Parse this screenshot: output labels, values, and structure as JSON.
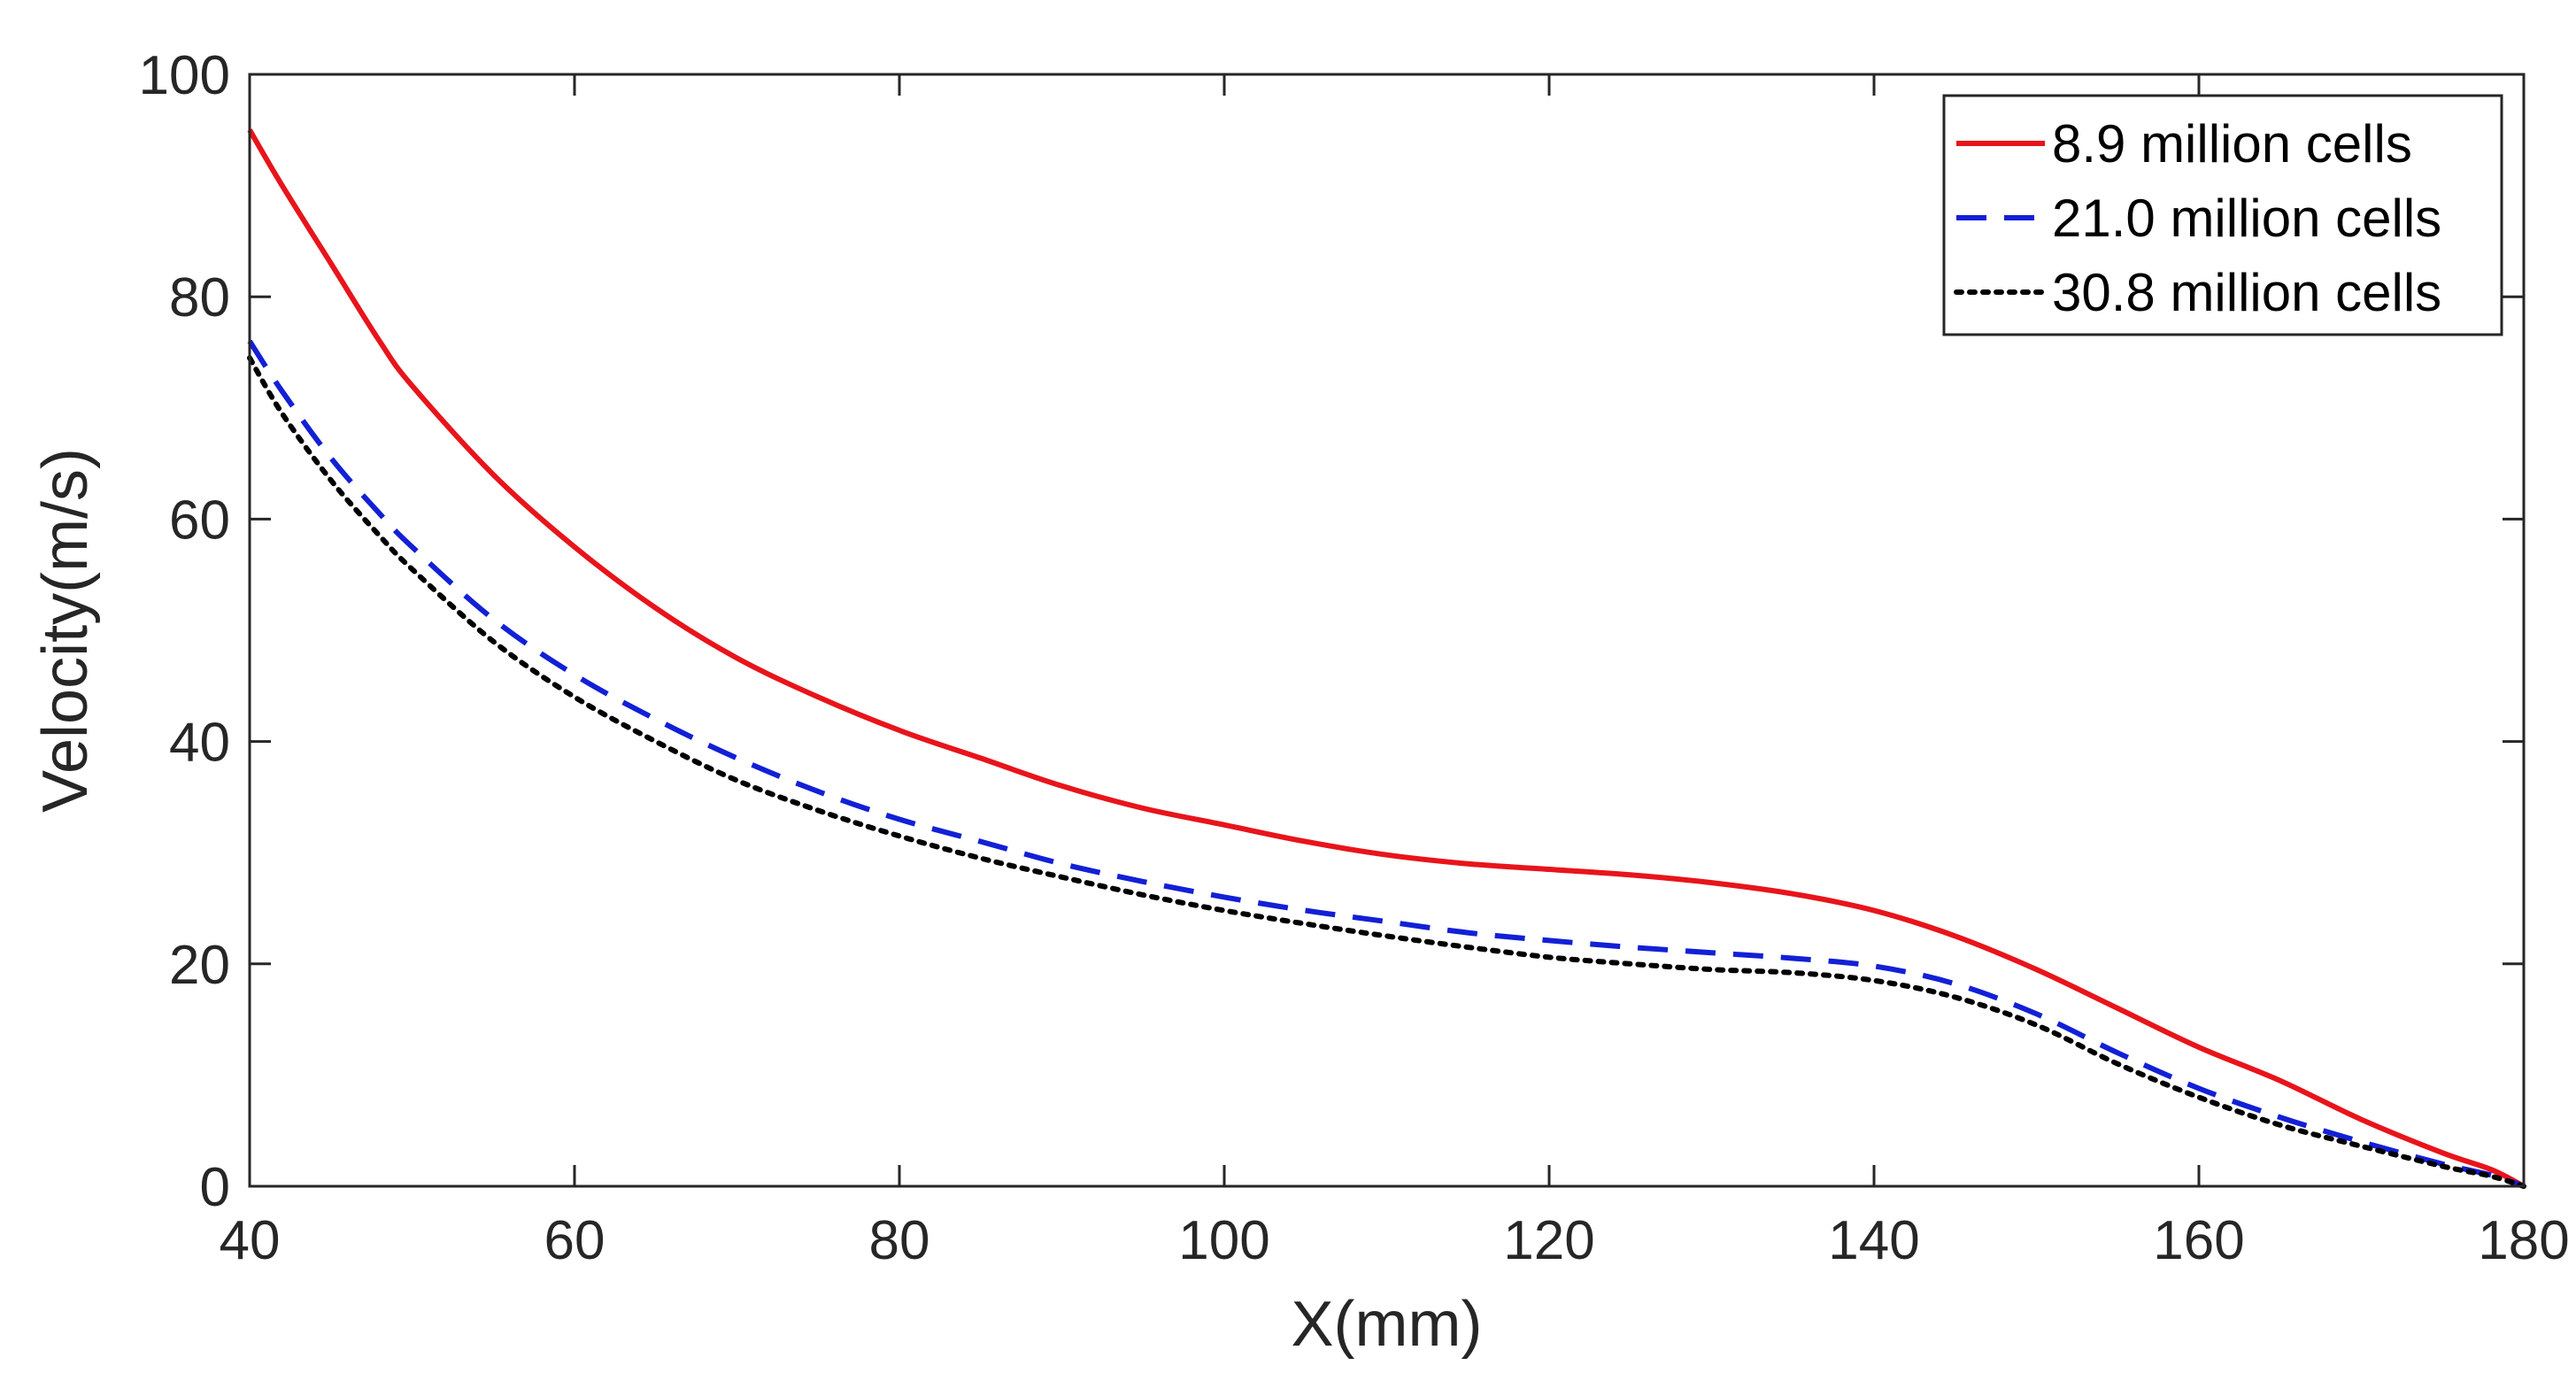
{
  "chart_data": {
    "type": "line",
    "xlabel": "X(mm)",
    "ylabel": "Velocity(m/s)",
    "xlim": [
      40,
      180
    ],
    "ylim": [
      0,
      100
    ],
    "xticks": [
      40,
      60,
      80,
      100,
      120,
      140,
      160,
      180
    ],
    "yticks": [
      0,
      20,
      40,
      60,
      80,
      100
    ],
    "xtick_labels": [
      "40",
      "60",
      "80",
      "100",
      "120",
      "140",
      "160",
      "180"
    ],
    "ytick_labels": [
      "0",
      "20",
      "40",
      "60",
      "80",
      "100"
    ],
    "grid": false,
    "legend_position": "top-right",
    "series": [
      {
        "name": "8.9 million cells",
        "color": "#e8141b",
        "style": "solid",
        "x": [
          40,
          42,
          45,
          48,
          50,
          55,
          60,
          65,
          70,
          75,
          80,
          85,
          90,
          95,
          100,
          105,
          110,
          115,
          120,
          125,
          130,
          135,
          140,
          145,
          150,
          155,
          160,
          165,
          170,
          175,
          178,
          180
        ],
        "y": [
          95,
          90,
          83,
          76,
          72,
          64,
          57.5,
          52,
          47.5,
          44,
          41,
          38.5,
          36,
          34,
          32.5,
          31,
          29.8,
          29,
          28.5,
          28,
          27.3,
          26.3,
          24.8,
          22.5,
          19.5,
          16,
          12.5,
          9.5,
          6,
          3,
          1.5,
          0
        ]
      },
      {
        "name": "21.0 million cells",
        "color": "#1220d6",
        "style": "dashed",
        "x": [
          40,
          42,
          45,
          48,
          50,
          55,
          60,
          65,
          70,
          75,
          80,
          85,
          90,
          95,
          100,
          105,
          110,
          115,
          120,
          125,
          130,
          135,
          140,
          145,
          150,
          155,
          160,
          165,
          170,
          175,
          178,
          180
        ],
        "y": [
          76,
          71.5,
          65.5,
          60.5,
          57.5,
          51,
          46,
          42,
          38.5,
          35.5,
          33,
          31,
          29,
          27.4,
          26,
          24.8,
          23.8,
          22.8,
          22.1,
          21.5,
          21,
          20.5,
          19.8,
          18.2,
          15.5,
          12,
          8.8,
          6.2,
          4,
          2,
          1,
          0
        ]
      },
      {
        "name": "30.8 million cells",
        "color": "#000000",
        "style": "dotted",
        "x": [
          40,
          42,
          45,
          48,
          50,
          55,
          60,
          65,
          70,
          75,
          80,
          85,
          90,
          95,
          100,
          105,
          110,
          115,
          120,
          125,
          130,
          135,
          140,
          145,
          150,
          155,
          160,
          165,
          170,
          175,
          178,
          180
        ],
        "y": [
          74.5,
          69.5,
          63.5,
          58.5,
          55.5,
          49,
          44,
          40,
          36.5,
          33.8,
          31.5,
          29.5,
          27.8,
          26.2,
          24.8,
          23.6,
          22.5,
          21.5,
          20.6,
          20,
          19.5,
          19.2,
          18.5,
          17,
          14.5,
          11,
          8,
          5.5,
          3.6,
          1.8,
          0.9,
          0
        ]
      }
    ]
  }
}
